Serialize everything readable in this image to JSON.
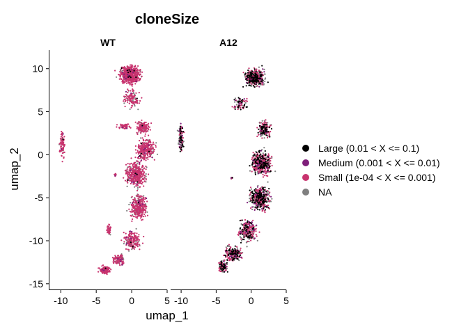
{
  "chart_data": {
    "type": "scatter",
    "title": "cloneSize",
    "xlabel": "umap_1",
    "ylabel": "umap_2",
    "xlim": [
      -11.5,
      5
    ],
    "ylim": [
      -15.5,
      12.0
    ],
    "x_ticks": [
      "-10",
      "-5",
      "0",
      "5"
    ],
    "y_ticks": [
      "-15",
      "-10",
      "-5",
      "0",
      "5",
      "10"
    ],
    "grid": false,
    "legend_position": "right",
    "colors": {
      "large": "#000000",
      "medium": "#7E1E7A",
      "small": "#C8336E",
      "na": "#7F7F7F"
    },
    "legend": [
      {
        "key": "large",
        "label": "Large (0.01 < X <= 0.1)"
      },
      {
        "key": "medium",
        "label": "Medium (0.001 < X <= 0.01)"
      },
      {
        "key": "small",
        "label": "Small (1e-04 < X <= 0.001)"
      },
      {
        "key": "na",
        "label": "NA"
      }
    ],
    "facets": [
      {
        "name": "WT",
        "composition": {
          "small": 0.82,
          "na": 0.15,
          "medium": 0.02,
          "large": 0.01
        },
        "clusters": [
          {
            "cx": -0.2,
            "cy": 9.3,
            "sx": 1.6,
            "sy": 1.1,
            "n": 600
          },
          {
            "cx": 0.0,
            "cy": 6.5,
            "sx": 1.2,
            "sy": 1.2,
            "n": 120
          },
          {
            "cx": 1.6,
            "cy": 3.2,
            "sx": 1.0,
            "sy": 0.8,
            "n": 150
          },
          {
            "cx": 2.0,
            "cy": 0.6,
            "sx": 1.4,
            "sy": 1.3,
            "n": 320
          },
          {
            "cx": 0.6,
            "cy": -2.2,
            "sx": 1.5,
            "sy": 1.6,
            "n": 420
          },
          {
            "cx": 1.0,
            "cy": -6.0,
            "sx": 1.3,
            "sy": 1.6,
            "n": 320
          },
          {
            "cx": 0.0,
            "cy": -10.0,
            "sx": 1.3,
            "sy": 1.3,
            "n": 180
          },
          {
            "cx": -1.8,
            "cy": -12.2,
            "sx": 1.0,
            "sy": 0.7,
            "n": 120
          },
          {
            "cx": -3.8,
            "cy": -13.4,
            "sx": 0.8,
            "sy": 0.5,
            "n": 140
          },
          {
            "cx": -1.0,
            "cy": 3.3,
            "sx": 1.1,
            "sy": 0.4,
            "n": 60
          },
          {
            "cx": -3.2,
            "cy": -8.8,
            "sx": 0.3,
            "sy": 0.8,
            "n": 45
          },
          {
            "cx": -2.3,
            "cy": -2.3,
            "sx": 0.2,
            "sy": 0.2,
            "n": 12
          },
          {
            "cx": -9.8,
            "cy": 1.2,
            "sx": 0.4,
            "sy": 1.8,
            "n": 90
          }
        ]
      },
      {
        "name": "A12",
        "composition": {
          "small": 0.38,
          "na": 0.3,
          "large": 0.24,
          "medium": 0.08
        },
        "clusters": [
          {
            "cx": 0.5,
            "cy": 9.0,
            "sx": 1.5,
            "sy": 1.1,
            "n": 450
          },
          {
            "cx": -1.5,
            "cy": 6.0,
            "sx": 1.2,
            "sy": 0.8,
            "n": 80
          },
          {
            "cx": 1.8,
            "cy": 3.0,
            "sx": 1.0,
            "sy": 1.0,
            "n": 170
          },
          {
            "cx": 1.5,
            "cy": -1.0,
            "sx": 1.6,
            "sy": 1.5,
            "n": 450
          },
          {
            "cx": 1.2,
            "cy": -5.0,
            "sx": 1.5,
            "sy": 1.5,
            "n": 450
          },
          {
            "cx": -0.5,
            "cy": -8.8,
            "sx": 1.4,
            "sy": 1.4,
            "n": 260
          },
          {
            "cx": -2.5,
            "cy": -11.5,
            "sx": 1.3,
            "sy": 0.9,
            "n": 220
          },
          {
            "cx": -4.0,
            "cy": -13.0,
            "sx": 0.7,
            "sy": 0.7,
            "n": 120
          },
          {
            "cx": -2.8,
            "cy": -2.7,
            "sx": 0.2,
            "sy": 0.3,
            "n": 10
          },
          {
            "cx": -10.0,
            "cy": 1.8,
            "sx": 0.4,
            "sy": 1.7,
            "n": 120
          }
        ]
      }
    ]
  }
}
